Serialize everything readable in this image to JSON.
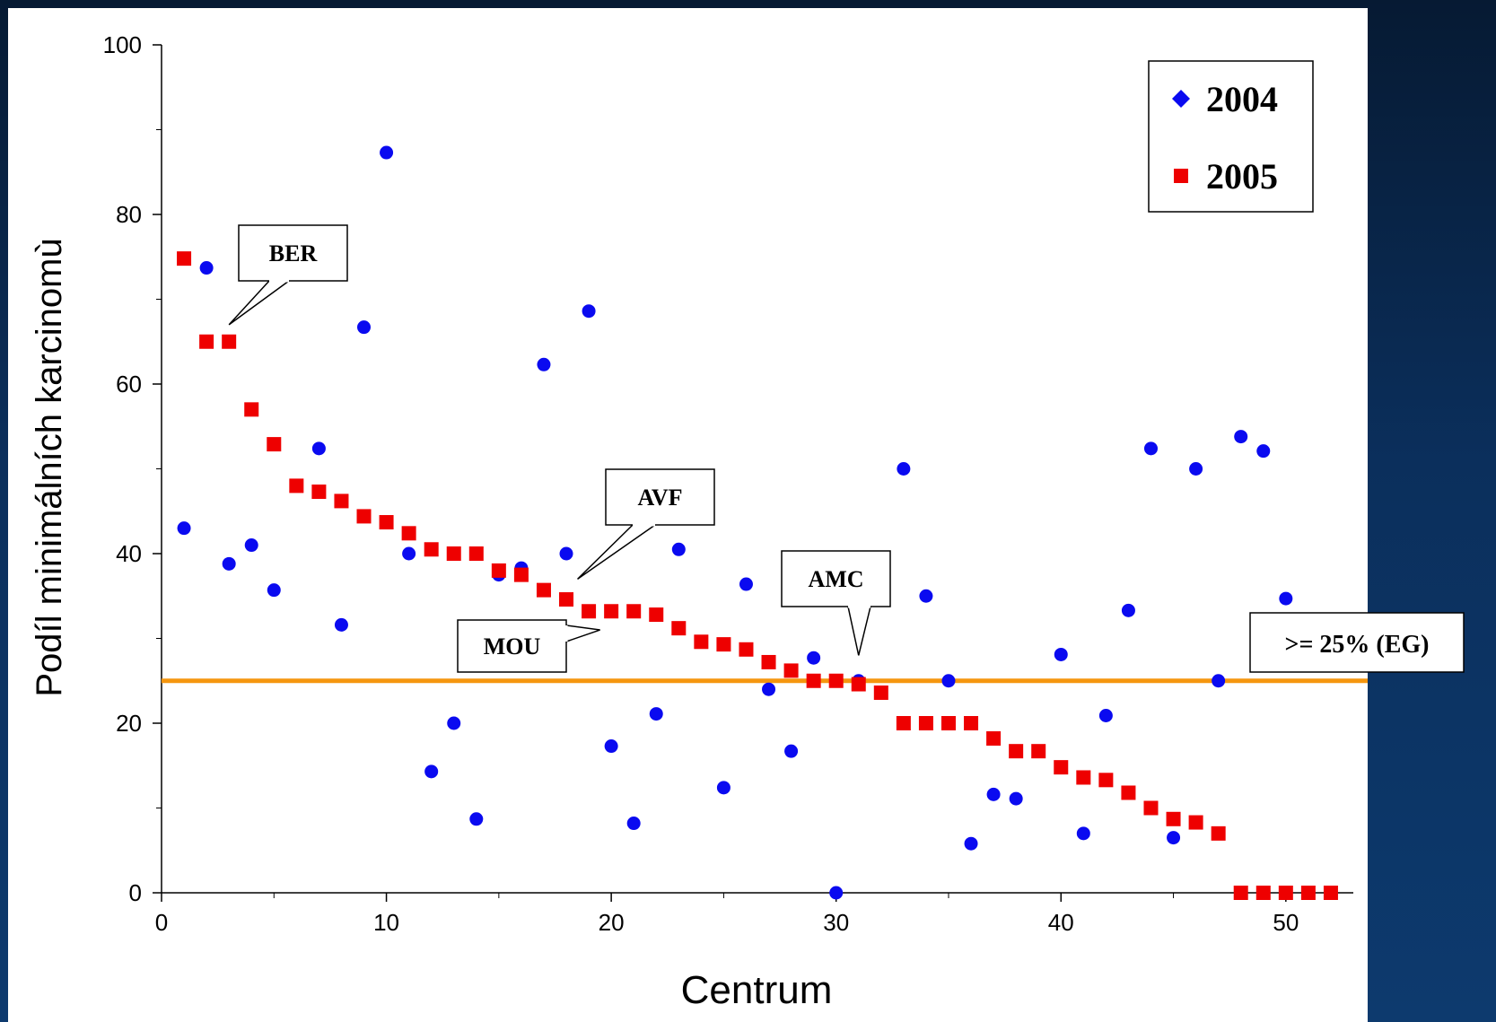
{
  "chart_data": {
    "type": "scatter",
    "xlabel": "Centrum",
    "ylabel": "Podíl minimálních karcinomù",
    "xlim": [
      0,
      53
    ],
    "ylim": [
      0,
      100
    ],
    "x_ticks": [
      "0",
      "10",
      "20",
      "30",
      "40",
      "50"
    ],
    "y_ticks": [
      "0",
      "20",
      "40",
      "60",
      "80",
      "100"
    ],
    "grid": false,
    "legend_position": "top-right",
    "series": [
      {
        "name": "2004",
        "marker": "circle",
        "color": "#0a0af0",
        "points": [
          [
            1,
            43
          ],
          [
            2,
            73.7
          ],
          [
            3,
            38.8
          ],
          [
            4,
            41
          ],
          [
            5,
            35.7
          ],
          [
            7,
            52.4
          ],
          [
            8,
            31.6
          ],
          [
            9,
            66.7
          ],
          [
            10,
            87.3
          ],
          [
            11,
            40
          ],
          [
            12,
            14.3
          ],
          [
            13,
            20
          ],
          [
            14,
            8.7
          ],
          [
            15,
            37.5
          ],
          [
            16,
            38.3
          ],
          [
            17,
            62.3
          ],
          [
            18,
            40
          ],
          [
            19,
            68.6
          ],
          [
            20,
            17.3
          ],
          [
            21,
            8.2
          ],
          [
            22,
            21.1
          ],
          [
            23,
            40.5
          ],
          [
            25,
            12.4
          ],
          [
            26,
            36.4
          ],
          [
            27,
            24
          ],
          [
            28,
            16.7
          ],
          [
            29,
            27.7
          ],
          [
            30,
            0
          ],
          [
            31,
            25
          ],
          [
            33,
            50
          ],
          [
            34,
            35
          ],
          [
            35,
            25
          ],
          [
            36,
            5.8
          ],
          [
            37,
            11.6
          ],
          [
            38,
            11.1
          ],
          [
            40,
            28.1
          ],
          [
            41,
            7
          ],
          [
            42,
            20.9
          ],
          [
            43,
            33.3
          ],
          [
            44,
            52.4
          ],
          [
            45,
            6.5
          ],
          [
            46,
            50
          ],
          [
            47,
            25
          ],
          [
            48,
            53.8
          ],
          [
            49,
            52.1
          ],
          [
            50,
            34.7
          ]
        ]
      },
      {
        "name": "2005",
        "marker": "square",
        "color": "#ee0000",
        "points": [
          [
            1,
            74.8
          ],
          [
            2,
            65
          ],
          [
            3,
            65
          ],
          [
            4,
            57
          ],
          [
            5,
            52.9
          ],
          [
            6,
            48
          ],
          [
            7,
            47.3
          ],
          [
            8,
            46.2
          ],
          [
            9,
            44.4
          ],
          [
            10,
            43.7
          ],
          [
            11,
            42.4
          ],
          [
            12,
            40.5
          ],
          [
            13,
            40
          ],
          [
            14,
            40
          ],
          [
            15,
            38
          ],
          [
            16,
            37.5
          ],
          [
            17,
            35.7
          ],
          [
            18,
            34.6
          ],
          [
            19,
            33.2
          ],
          [
            20,
            33.2
          ],
          [
            21,
            33.2
          ],
          [
            22,
            32.8
          ],
          [
            23,
            31.2
          ],
          [
            24,
            29.6
          ],
          [
            25,
            29.3
          ],
          [
            26,
            28.7
          ],
          [
            27,
            27.2
          ],
          [
            28,
            26.2
          ],
          [
            29,
            25
          ],
          [
            30,
            25
          ],
          [
            31,
            24.6
          ],
          [
            32,
            23.6
          ],
          [
            33,
            20
          ],
          [
            34,
            20
          ],
          [
            35,
            20
          ],
          [
            36,
            20
          ],
          [
            37,
            18.2
          ],
          [
            38,
            16.7
          ],
          [
            39,
            16.7
          ],
          [
            40,
            14.8
          ],
          [
            41,
            13.6
          ],
          [
            42,
            13.3
          ],
          [
            43,
            11.8
          ],
          [
            44,
            10
          ],
          [
            45,
            8.7
          ],
          [
            46,
            8.3
          ],
          [
            47,
            7
          ],
          [
            48,
            0
          ],
          [
            49,
            0
          ],
          [
            50,
            0
          ],
          [
            51,
            0
          ],
          [
            52,
            0
          ]
        ]
      }
    ],
    "reference_line": {
      "y": 25,
      "label": ">= 25% (EG)",
      "color": "#f5960f"
    },
    "annotations": [
      {
        "text": "BER",
        "target": [
          3,
          67
        ]
      },
      {
        "text": "AVF",
        "target": [
          18.5,
          37
        ]
      },
      {
        "text": "MOU",
        "target": [
          19.5,
          31
        ]
      },
      {
        "text": "AMC",
        "target": [
          31,
          28
        ]
      }
    ]
  }
}
